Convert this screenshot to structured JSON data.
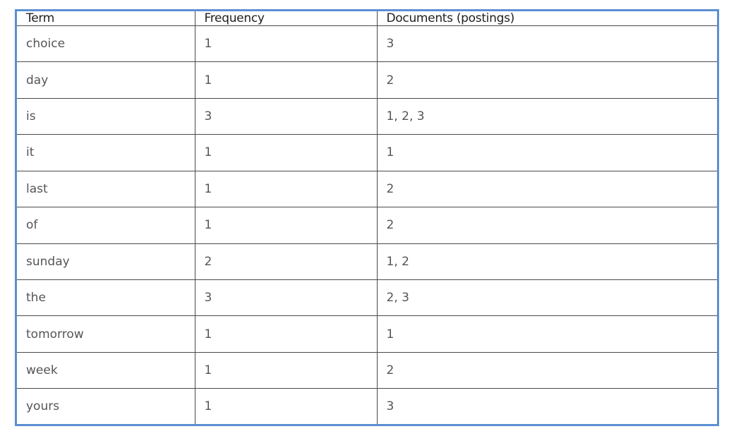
{
  "table": {
    "headers": [
      "Term",
      "Frequency",
      "Documents (postings)"
    ],
    "rows": [
      {
        "term": "choice",
        "frequency": "1",
        "documents": "3"
      },
      {
        "term": "day",
        "frequency": "1",
        "documents": "2"
      },
      {
        "term": "is",
        "frequency": "3",
        "documents": "1, 2, 3"
      },
      {
        "term": "it",
        "frequency": "1",
        "documents": "1"
      },
      {
        "term": "last",
        "frequency": "1",
        "documents": "2"
      },
      {
        "term": "of",
        "frequency": "1",
        "documents": "2"
      },
      {
        "term": "sunday",
        "frequency": "2",
        "documents": "1, 2"
      },
      {
        "term": "the",
        "frequency": "3",
        "documents": "2, 3"
      },
      {
        "term": "tomorrow",
        "frequency": "1",
        "documents": "1"
      },
      {
        "term": "week",
        "frequency": "1",
        "documents": "2"
      },
      {
        "term": "yours",
        "frequency": "1",
        "documents": "3"
      }
    ]
  },
  "colors": {
    "frame": "#5b8fd3",
    "grid": "#4a4a4a",
    "header_text": "#1f1f1f",
    "cell_text": "#555555"
  }
}
